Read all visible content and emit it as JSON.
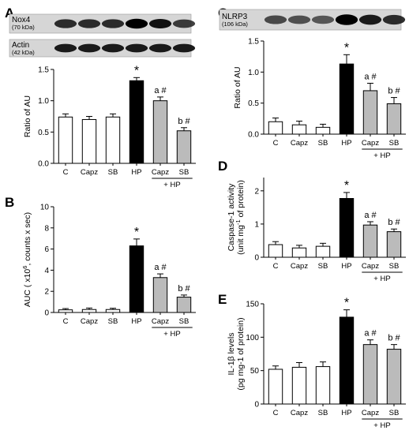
{
  "chart_data": [
    {
      "panel": "A",
      "type": "bar",
      "categories": [
        "C",
        "Capz",
        "SB",
        "HP",
        "Capz",
        "SB"
      ],
      "group_label": "+ HP",
      "values": [
        0.74,
        0.7,
        0.74,
        1.32,
        1.0,
        0.52
      ],
      "errors": [
        0.05,
        0.05,
        0.05,
        0.05,
        0.06,
        0.05
      ],
      "annotations": [
        "",
        "",
        "",
        "*",
        "a #",
        "b #"
      ],
      "bar_fills": [
        "#ffffff",
        "#ffffff",
        "#ffffff",
        "#000000",
        "#bbbbbb",
        "#bbbbbb"
      ],
      "ylabel": "Ratio of AU",
      "ylim": [
        0,
        1.5
      ],
      "yticks": [
        "0.0",
        "0.5",
        "1.0",
        "1.5"
      ],
      "blots": [
        {
          "name": "Nox4",
          "kda": "(70 kDa)"
        },
        {
          "name": "Actin",
          "kda": "(42 kDa)"
        }
      ]
    },
    {
      "panel": "B",
      "type": "bar",
      "categories": [
        "C",
        "Capz",
        "SB",
        "HP",
        "Capz",
        "SB"
      ],
      "group_label": "+ HP",
      "values": [
        0.25,
        0.28,
        0.28,
        6.3,
        3.3,
        1.45
      ],
      "errors": [
        0.12,
        0.14,
        0.12,
        0.65,
        0.35,
        0.2
      ],
      "annotations": [
        "",
        "",
        "",
        "*",
        "a #",
        "b #"
      ],
      "bar_fills": [
        "#ffffff",
        "#ffffff",
        "#ffffff",
        "#000000",
        "#bbbbbb",
        "#bbbbbb"
      ],
      "ylabel_parts": [
        "AUC ( x10",
        "6",
        ", counts x sec)"
      ],
      "ylim": [
        0,
        10
      ],
      "yticks": [
        "0",
        "2",
        "4",
        "6",
        "8",
        "10"
      ]
    },
    {
      "panel": "C",
      "type": "bar",
      "categories": [
        "C",
        "Capz",
        "SB",
        "HP",
        "Capz",
        "SB"
      ],
      "group_label": "+ HP",
      "values": [
        0.2,
        0.15,
        0.11,
        1.13,
        0.7,
        0.49
      ],
      "errors": [
        0.06,
        0.06,
        0.05,
        0.15,
        0.12,
        0.1
      ],
      "annotations": [
        "",
        "",
        "",
        "*",
        "a #",
        "b #"
      ],
      "bar_fills": [
        "#ffffff",
        "#ffffff",
        "#ffffff",
        "#000000",
        "#bbbbbb",
        "#bbbbbb"
      ],
      "ylabel": "Ratio of AU",
      "ylim": [
        0,
        1.5
      ],
      "yticks": [
        "0.0",
        "0.5",
        "1.0",
        "1.5"
      ],
      "blots": [
        {
          "name": "NLRP3",
          "kda": "(106 kDa)"
        }
      ]
    },
    {
      "panel": "D",
      "type": "bar",
      "categories": [
        "C",
        "Capz",
        "SB",
        "HP",
        "Capz",
        "SB"
      ],
      "group_label": "+ HP",
      "values": [
        0.38,
        0.28,
        0.33,
        1.77,
        0.97,
        0.77
      ],
      "errors": [
        0.09,
        0.08,
        0.09,
        0.18,
        0.1,
        0.08
      ],
      "annotations": [
        "",
        "",
        "",
        "*",
        "a #",
        "b #"
      ],
      "bar_fills": [
        "#ffffff",
        "#ffffff",
        "#ffffff",
        "#000000",
        "#bbbbbb",
        "#bbbbbb"
      ],
      "ylabel_lines": [
        [
          "Caspase-1 activity"
        ],
        [
          "(unit mg",
          "-1",
          " of protein)"
        ]
      ],
      "ylim": [
        0,
        2.4
      ],
      "yticks": [
        "0",
        "1",
        "2"
      ],
      "ytick_values": [
        0,
        1,
        2
      ]
    },
    {
      "panel": "E",
      "type": "bar",
      "categories": [
        "C",
        "Capz",
        "SB",
        "HP",
        "Capz",
        "SB"
      ],
      "group_label": "+ HP",
      "values": [
        52,
        55,
        56,
        130,
        89,
        82
      ],
      "errors": [
        5,
        7,
        7,
        11,
        7,
        7
      ],
      "annotations": [
        "",
        "",
        "",
        "*",
        "a #",
        "b #"
      ],
      "bar_fills": [
        "#ffffff",
        "#ffffff",
        "#ffffff",
        "#000000",
        "#bbbbbb",
        "#bbbbbb"
      ],
      "ylabel_lines": [
        [
          "IL-1",
          "β",
          " levels"
        ],
        [
          "(pg mg-1 of protein)"
        ]
      ],
      "ylim": [
        0,
        150
      ],
      "yticks": [
        "0",
        "50",
        "100",
        "150"
      ]
    }
  ]
}
